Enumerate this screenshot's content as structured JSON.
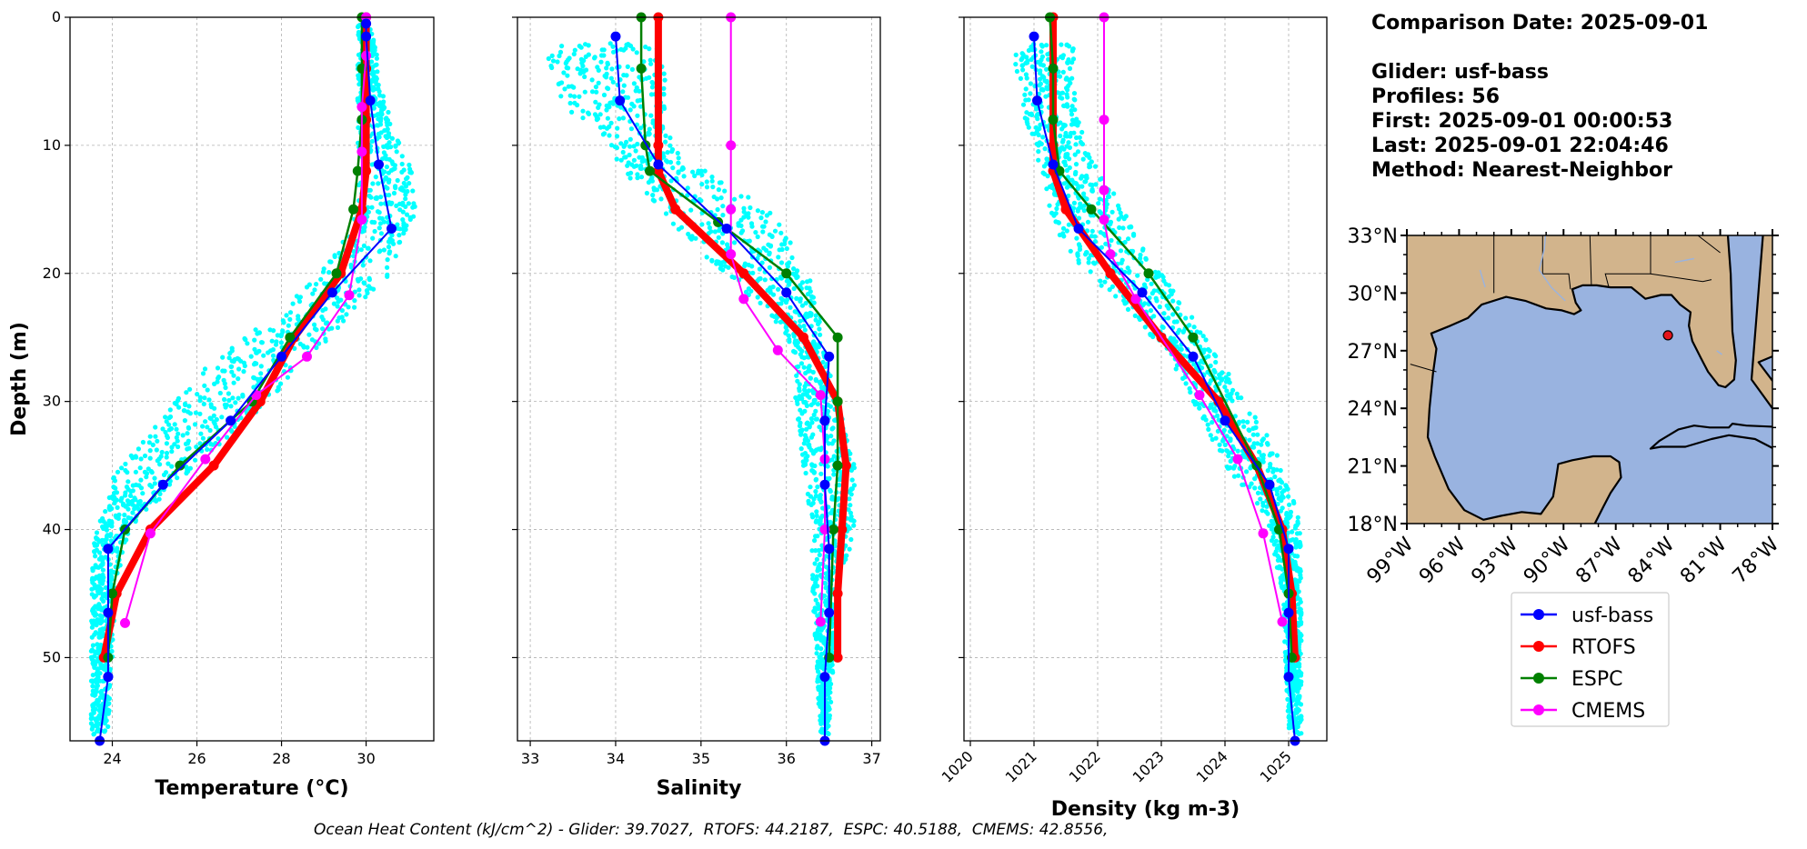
{
  "info": {
    "comparison_date": "Comparison Date: 2025-09-01",
    "glider": "Glider: usf-bass",
    "profiles": "Profiles: 56",
    "first": "First: 2025-09-01 00:00:53",
    "last": "Last: 2025-09-01 22:04:46",
    "method": "Method: Nearest-Neighbor"
  },
  "footer": "Ocean Heat Content (kJ/cm^2) - Glider: 39.7027,  RTOFS: 44.2187,  ESPC: 40.5188,  CMEMS: 42.8556,",
  "colors": {
    "usf_bass": "#0000ff",
    "rtofs": "#ff0000",
    "espc": "#008000",
    "cmems": "#ff00ff",
    "scatter": "#00ffff",
    "ocean": "#99b3e0",
    "land": "#d2b48c",
    "grid": "#b0b0b0"
  },
  "legend": [
    "usf-bass",
    "RTOFS",
    "ESPC",
    "CMEMS"
  ],
  "map": {
    "lat_ticks": [
      "18°N",
      "21°N",
      "24°N",
      "27°N",
      "30°N",
      "33°N"
    ],
    "lon_ticks": [
      "99°W",
      "96°W",
      "93°W",
      "90°W",
      "87°W",
      "84°W",
      "81°W",
      "78°W"
    ],
    "xlim": [
      -99,
      -78
    ],
    "ylim": [
      18,
      33
    ],
    "glider_position": [
      -84.0,
      27.8
    ]
  },
  "chart_data": [
    {
      "type": "line",
      "xlabel": "Temperature (°C)",
      "ylabel": "Depth (m)",
      "xlim": [
        23,
        31.6
      ],
      "ylim": [
        56.5,
        0
      ],
      "xticks": [
        24,
        26,
        28,
        30
      ],
      "yticks": [
        0,
        10,
        20,
        30,
        40,
        50
      ],
      "grid": true,
      "scatter_band": [
        [
          0.5,
          29.8,
          30.2
        ],
        [
          5,
          29.8,
          30.3
        ],
        [
          8,
          29.8,
          30.6
        ],
        [
          10,
          29.8,
          30.8
        ],
        [
          12,
          29.9,
          31.1
        ],
        [
          15,
          29.7,
          31.2
        ],
        [
          18,
          29.4,
          30.8
        ],
        [
          20,
          28.9,
          30.6
        ],
        [
          22,
          28.2,
          30.0
        ],
        [
          24,
          27.5,
          29.5
        ],
        [
          26,
          26.7,
          28.8
        ],
        [
          28,
          26.0,
          28.2
        ],
        [
          30,
          25.5,
          27.7
        ],
        [
          32,
          25.0,
          27.0
        ],
        [
          34,
          24.5,
          26.4
        ],
        [
          36,
          24.0,
          25.6
        ],
        [
          38,
          23.9,
          25.0
        ],
        [
          40,
          23.6,
          24.4
        ],
        [
          44,
          23.5,
          24.1
        ],
        [
          50,
          23.5,
          24.0
        ],
        [
          56,
          23.5,
          23.9
        ]
      ],
      "series": [
        {
          "name": "usf-bass",
          "x": [
            30.0,
            30.0,
            30.1,
            30.3,
            30.6,
            29.2,
            28.0,
            26.8,
            25.2,
            23.9,
            23.9,
            23.9,
            23.9,
            23.7
          ],
          "y": [
            0.5,
            1.5,
            6.5,
            11.5,
            16.5,
            21.5,
            26.5,
            31.5,
            36.5,
            41.5,
            46.5,
            51.5,
            51.5,
            56.5
          ]
        },
        {
          "name": "RTOFS",
          "x": [
            30.0,
            30.0,
            30.0,
            30.0,
            29.9,
            29.4,
            28.3,
            27.5,
            26.4,
            24.9,
            24.1,
            23.8
          ],
          "y": [
            0,
            4,
            8,
            12,
            15,
            20,
            25,
            30,
            35,
            40,
            45,
            50
          ]
        },
        {
          "name": "ESPC",
          "x": [
            29.9,
            29.9,
            29.9,
            29.8,
            29.7,
            29.3,
            28.2,
            27.3,
            25.6,
            24.3,
            24.0,
            23.9
          ],
          "y": [
            0,
            4,
            8,
            12,
            15,
            20,
            25,
            30,
            35,
            40,
            45,
            50
          ]
        },
        {
          "name": "CMEMS",
          "x": [
            30.0,
            30.0,
            29.9,
            29.9,
            29.9,
            29.6,
            28.6,
            27.4,
            26.2,
            24.9,
            24.3
          ],
          "y": [
            0,
            3,
            7,
            10.5,
            15.8,
            21.7,
            26.5,
            29.5,
            34.5,
            40.3,
            47.3
          ]
        }
      ]
    },
    {
      "type": "line",
      "xlabel": "Salinity",
      "ylabel": "",
      "xlim": [
        32.85,
        37.1
      ],
      "ylim": [
        56.5,
        0
      ],
      "xticks": [
        33,
        34,
        35,
        36,
        37
      ],
      "yticks": [
        0,
        10,
        20,
        30,
        40,
        50
      ],
      "grid": true,
      "scatter_band": [
        [
          2,
          33.3,
          34.6
        ],
        [
          3,
          33.2,
          34.5
        ],
        [
          5,
          33.3,
          34.6
        ],
        [
          7,
          33.4,
          34.6
        ],
        [
          9,
          33.8,
          34.6
        ],
        [
          11,
          34.0,
          34.8
        ],
        [
          13,
          34.2,
          35.3
        ],
        [
          15,
          34.5,
          35.8
        ],
        [
          17,
          34.8,
          36.0
        ],
        [
          19,
          35.1,
          36.2
        ],
        [
          21,
          35.4,
          36.3
        ],
        [
          23,
          35.8,
          36.4
        ],
        [
          25,
          36.0,
          36.4
        ],
        [
          27,
          36.1,
          36.5
        ],
        [
          30,
          36.1,
          36.6
        ],
        [
          35,
          36.2,
          36.8
        ],
        [
          40,
          36.3,
          36.8
        ],
        [
          45,
          36.3,
          36.6
        ],
        [
          56,
          36.4,
          36.5
        ]
      ],
      "series": [
        {
          "name": "usf-bass",
          "x": [
            34.0,
            34.05,
            34.5,
            35.3,
            36.0,
            36.5,
            36.45,
            36.45,
            36.5,
            36.5,
            36.45,
            36.45
          ],
          "y": [
            1.5,
            6.5,
            11.5,
            16.5,
            21.5,
            26.5,
            31.5,
            36.5,
            41.5,
            46.5,
            51.5,
            56.5
          ]
        },
        {
          "name": "RTOFS",
          "x": [
            34.5,
            34.5,
            34.5,
            34.7,
            35.5,
            36.2,
            36.6,
            36.7,
            36.65,
            36.6,
            36.6
          ],
          "y": [
            0,
            10,
            12,
            15,
            20,
            25,
            30,
            35,
            40,
            45,
            50
          ]
        },
        {
          "name": "ESPC",
          "x": [
            34.3,
            34.3,
            34.35,
            34.4,
            35.2,
            36.0,
            36.6,
            36.6,
            36.6,
            36.55,
            36.5
          ],
          "y": [
            0,
            4,
            10,
            12,
            16,
            20,
            25,
            30,
            35,
            40,
            50
          ]
        },
        {
          "name": "CMEMS",
          "x": [
            35.35,
            35.35,
            35.35,
            35.35,
            35.5,
            35.9,
            36.4,
            36.45,
            36.45,
            36.4
          ],
          "y": [
            0,
            10,
            15,
            18.5,
            22,
            26,
            29.5,
            34.5,
            40,
            47.2
          ]
        }
      ]
    },
    {
      "type": "line",
      "xlabel": "Density (kg m-3)",
      "ylabel": "",
      "xlim": [
        1019.9,
        1025.6
      ],
      "ylim": [
        56.5,
        0
      ],
      "xticks": [
        1020,
        1021,
        1022,
        1023,
        1024,
        1025
      ],
      "yticks": [
        0,
        10,
        20,
        30,
        40,
        50
      ],
      "grid": true,
      "scatter_band": [
        [
          2,
          1020.7,
          1021.7
        ],
        [
          4,
          1020.7,
          1021.6
        ],
        [
          7,
          1020.8,
          1021.7
        ],
        [
          10,
          1021.0,
          1021.8
        ],
        [
          12,
          1021.1,
          1022.0
        ],
        [
          14,
          1021.2,
          1022.3
        ],
        [
          16,
          1021.3,
          1022.5
        ],
        [
          18,
          1021.5,
          1022.7
        ],
        [
          20,
          1021.8,
          1023.0
        ],
        [
          22,
          1022.3,
          1023.3
        ],
        [
          24,
          1022.7,
          1023.6
        ],
        [
          26,
          1023.0,
          1023.8
        ],
        [
          28,
          1023.3,
          1024.1
        ],
        [
          30,
          1023.5,
          1024.3
        ],
        [
          32,
          1023.7,
          1024.6
        ],
        [
          35,
          1024.0,
          1024.9
        ],
        [
          38,
          1024.5,
          1025.1
        ],
        [
          40,
          1024.7,
          1025.2
        ],
        [
          45,
          1024.9,
          1025.2
        ],
        [
          56,
          1025.0,
          1025.2
        ]
      ],
      "series": [
        {
          "name": "usf-bass",
          "x": [
            1021.0,
            1021.05,
            1021.3,
            1021.7,
            1022.7,
            1023.5,
            1024.0,
            1024.7,
            1025.0,
            1025.0,
            1025.0,
            1025.1
          ],
          "y": [
            1.5,
            6.5,
            11.5,
            16.5,
            21.5,
            26.5,
            31.5,
            36.5,
            41.5,
            46.5,
            51.5,
            56.5
          ]
        },
        {
          "name": "RTOFS",
          "x": [
            1021.3,
            1021.3,
            1021.3,
            1021.5,
            1022.2,
            1023.0,
            1023.9,
            1024.5,
            1024.9,
            1025.05,
            1025.1
          ],
          "y": [
            0,
            10,
            12,
            15,
            20,
            25,
            30,
            35,
            40,
            45,
            50
          ]
        },
        {
          "name": "ESPC",
          "x": [
            1021.25,
            1021.3,
            1021.3,
            1021.4,
            1021.9,
            1022.8,
            1023.5,
            1024.5,
            1024.85,
            1025.0,
            1025.05
          ],
          "y": [
            0,
            4,
            8,
            12,
            15,
            20,
            25,
            35,
            40,
            45,
            50
          ]
        },
        {
          "name": "CMEMS",
          "x": [
            1022.1,
            1022.1,
            1022.1,
            1022.1,
            1022.2,
            1022.6,
            1023.6,
            1024.2,
            1024.6,
            1024.9
          ],
          "y": [
            0,
            8,
            13.5,
            15.8,
            18.5,
            22,
            29.5,
            34.5,
            40.3,
            47.2
          ]
        }
      ]
    }
  ]
}
